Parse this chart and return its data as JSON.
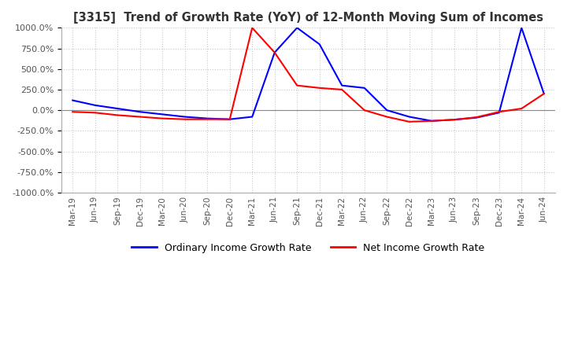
{
  "title": "[3315]  Trend of Growth Rate (YoY) of 12-Month Moving Sum of Incomes",
  "ylim": [
    -1000,
    1000
  ],
  "yticks": [
    1000.0,
    750.0,
    500.0,
    250.0,
    0.0,
    -250.0,
    -500.0,
    -750.0,
    -1000.0
  ],
  "background_color": "#ffffff",
  "grid_color": "#c8c8c8",
  "legend": [
    "Ordinary Income Growth Rate",
    "Net Income Growth Rate"
  ],
  "line_colors": [
    "#0000ff",
    "#ff0000"
  ],
  "dates": [
    "Mar-19",
    "Jun-19",
    "Sep-19",
    "Dec-19",
    "Mar-20",
    "Jun-20",
    "Sep-20",
    "Dec-20",
    "Mar-21",
    "Jun-21",
    "Sep-21",
    "Dec-21",
    "Mar-22",
    "Jun-22",
    "Sep-22",
    "Dec-22",
    "Mar-23",
    "Jun-23",
    "Sep-23",
    "Dec-23",
    "Mar-24",
    "Jun-24"
  ],
  "ordinary_income": [
    120,
    60,
    20,
    -20,
    -50,
    -80,
    -100,
    -110,
    -80,
    700,
    1000,
    800,
    300,
    270,
    0,
    -80,
    -130,
    -115,
    -90,
    -30,
    1000,
    200
  ],
  "net_income": [
    -20,
    -30,
    -60,
    -80,
    -100,
    -110,
    -110,
    -110,
    1000,
    700,
    300,
    270,
    250,
    0,
    -80,
    -140,
    -130,
    -115,
    -85,
    -20,
    20,
    200
  ]
}
